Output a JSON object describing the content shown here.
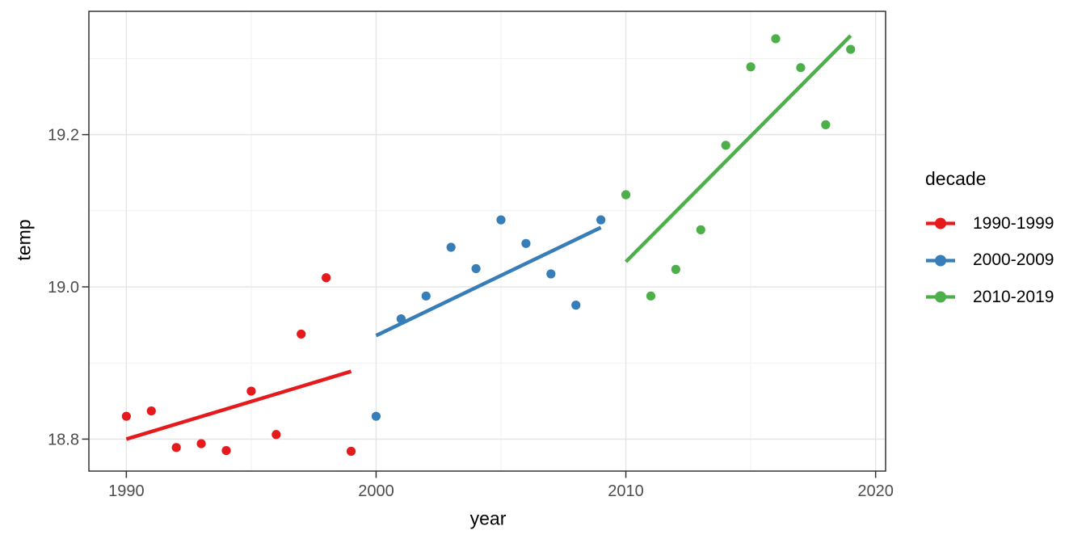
{
  "figure": {
    "background": "#ffffff",
    "panel_border_color": "#333333",
    "grid_major_color": "#e4e4e4",
    "grid_minor_color": "#efefef",
    "tick_text_color": "#4d4d4d"
  },
  "chart_data": {
    "type": "scatter",
    "title": "",
    "xlabel": "year",
    "ylabel": "temp",
    "xlim": [
      1988.5,
      2020.4
    ],
    "ylim": [
      18.758,
      19.362
    ],
    "x_ticks": [
      1990,
      2000,
      2010,
      2020
    ],
    "x_minor_ticks": [
      1995,
      2005,
      2015
    ],
    "y_ticks": [
      18.8,
      19.0,
      19.2
    ],
    "y_minor_ticks": [
      18.9,
      19.1,
      19.3
    ],
    "grid": true,
    "legend": {
      "title": "decade",
      "position": "right"
    },
    "series": [
      {
        "name": "1990-1999",
        "color": "#E41A1C",
        "x": [
          1990,
          1991,
          1992,
          1993,
          1994,
          1995,
          1996,
          1997,
          1998,
          1999
        ],
        "y": [
          18.83,
          18.837,
          18.789,
          18.794,
          18.785,
          18.863,
          18.806,
          18.938,
          19.012,
          18.784
        ],
        "trend_line": {
          "x": [
            1990,
            1999
          ],
          "y": [
            18.8,
            18.889
          ]
        }
      },
      {
        "name": "2000-2009",
        "color": "#377EB8",
        "x": [
          2000,
          2001,
          2002,
          2003,
          2004,
          2005,
          2006,
          2007,
          2008,
          2009
        ],
        "y": [
          18.83,
          18.958,
          18.988,
          19.052,
          19.024,
          19.088,
          19.057,
          19.017,
          18.976,
          19.088
        ],
        "trend_line": {
          "x": [
            2000,
            2009
          ],
          "y": [
            18.936,
            19.078
          ]
        }
      },
      {
        "name": "2010-2019",
        "color": "#4DAF4A",
        "x": [
          2010,
          2011,
          2012,
          2013,
          2014,
          2015,
          2016,
          2017,
          2018,
          2019
        ],
        "y": [
          19.121,
          18.988,
          19.023,
          19.075,
          19.186,
          19.289,
          19.326,
          19.288,
          19.213,
          19.312
        ],
        "trend_line": {
          "x": [
            2010,
            2019
          ],
          "y": [
            19.033,
            19.33
          ]
        }
      }
    ]
  }
}
